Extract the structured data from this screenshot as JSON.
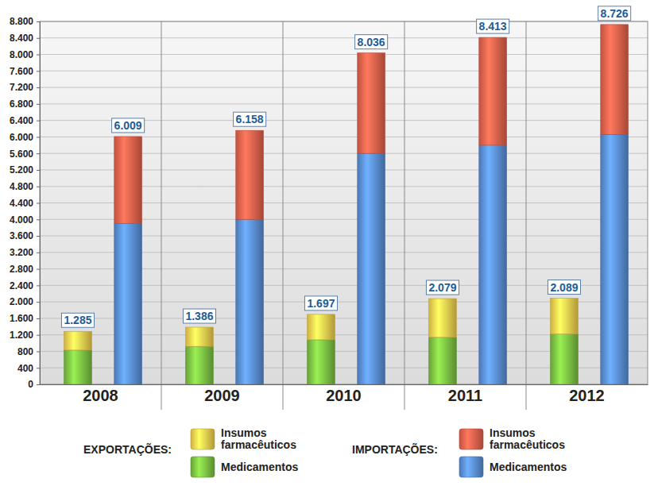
{
  "chart_data": {
    "type": "bar",
    "stacked": true,
    "grid": true,
    "legend": "bottom",
    "categories": [
      "2008",
      "2009",
      "2010",
      "2011",
      "2012"
    ],
    "ylim": [
      0,
      8800
    ],
    "yticks": [
      0,
      400,
      800,
      {
        "value": 1200,
        "label": "1.200"
      },
      {
        "value": 1600,
        "label": "1.600"
      },
      {
        "value": 2000,
        "label": "2.000"
      },
      {
        "value": 2400,
        "label": "2.400"
      },
      {
        "value": 2800,
        "label": "2.800"
      },
      {
        "value": 3200,
        "label": "3.200"
      },
      {
        "value": 3600,
        "label": "3.600"
      },
      {
        "value": 4000,
        "label": "4.000"
      },
      {
        "value": 4400,
        "label": "4.400"
      },
      {
        "value": 4800,
        "label": "4.800"
      },
      {
        "value": 5200,
        "label": "5.200"
      },
      {
        "value": 5600,
        "label": "5.600"
      },
      {
        "value": 6000,
        "label": "6.000"
      },
      {
        "value": 6400,
        "label": "6.400"
      },
      {
        "value": 6800,
        "label": "6.800"
      },
      {
        "value": 7200,
        "label": "7.200"
      },
      {
        "value": 7600,
        "label": "7.600"
      },
      {
        "value": 8000,
        "label": "8.000"
      },
      {
        "value": 8400,
        "label": "8.400"
      },
      {
        "value": 8800,
        "label": "8.800"
      }
    ],
    "groups": [
      {
        "name": "EXPORTAÇÕES:",
        "totals": [
          1285,
          1386,
          1697,
          2079,
          2089
        ],
        "total_labels": [
          "1.285",
          "1.386",
          "1.697",
          "2.079",
          "2.089"
        ],
        "series": [
          {
            "name": "Medicamentos",
            "color": "#7cc243",
            "values": [
              830,
              920,
              1080,
              1140,
              1220
            ]
          },
          {
            "name": "Insumos farmacêuticos",
            "color": "#f7d24f",
            "values": [
              455,
              466,
              617,
              939,
              869
            ]
          }
        ]
      },
      {
        "name": "IMPORTAÇÕES:",
        "totals": [
          6009,
          6158,
          8036,
          8413,
          8726
        ],
        "total_labels": [
          "6.009",
          "6.158",
          "8.036",
          "8.413",
          "8.726"
        ],
        "series": [
          {
            "name": "Medicamentos",
            "color": "#5a8fd8",
            "values": [
              3900,
              4000,
              5600,
              5800,
              6060
            ]
          },
          {
            "name": "Insumos farmacêuticos",
            "color": "#e8624c",
            "values": [
              2109,
              2158,
              2436,
              2613,
              2666
            ]
          }
        ]
      }
    ]
  }
}
